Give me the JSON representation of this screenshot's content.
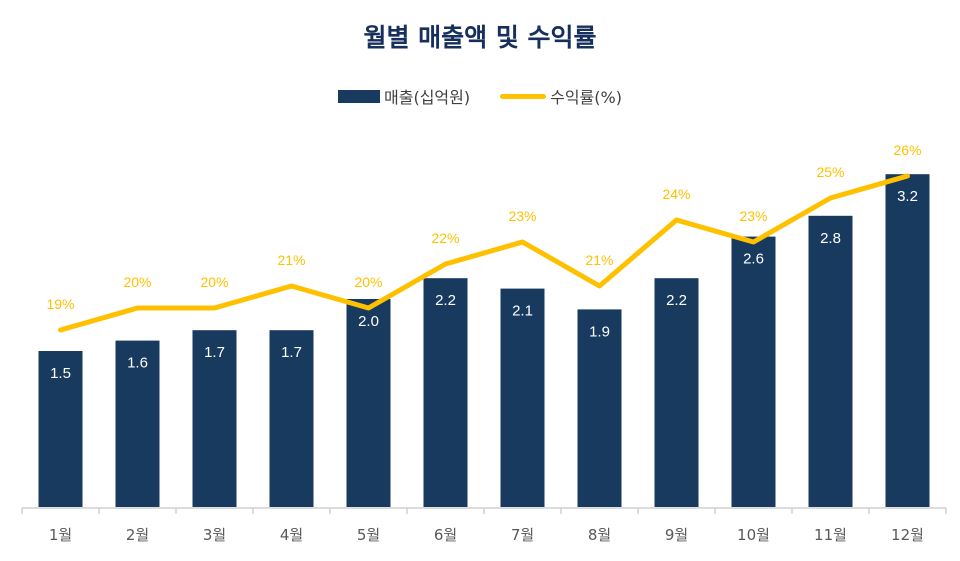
{
  "chart_data": {
    "type": "bar+line",
    "title": "월별 매출액 및 수익률",
    "categories": [
      "1월",
      "2월",
      "3월",
      "4월",
      "5월",
      "6월",
      "7월",
      "8월",
      "9월",
      "10월",
      "11월",
      "12월"
    ],
    "series": [
      {
        "name": "매출(십억원)",
        "type": "bar",
        "axis": "primary",
        "color": "#173a5e",
        "values": [
          1.5,
          1.6,
          1.7,
          1.7,
          2.0,
          2.2,
          2.1,
          1.9,
          2.2,
          2.6,
          2.8,
          3.2
        ],
        "labels": [
          "1.5",
          "1.6",
          "1.7",
          "1.7",
          "2.0",
          "2.2",
          "2.1",
          "1.9",
          "2.2",
          "2.6",
          "2.8",
          "3.2"
        ]
      },
      {
        "name": "수익률(%)",
        "type": "line",
        "axis": "secondary",
        "color": "#ffc000",
        "values": [
          19,
          20,
          20,
          21,
          20,
          22,
          23,
          21,
          24,
          23,
          25,
          26
        ],
        "labels": [
          "19%",
          "20%",
          "20%",
          "21%",
          "20%",
          "22%",
          "23%",
          "21%",
          "24%",
          "23%",
          "25%",
          "26%"
        ]
      }
    ],
    "legend": "top",
    "grid": false
  }
}
